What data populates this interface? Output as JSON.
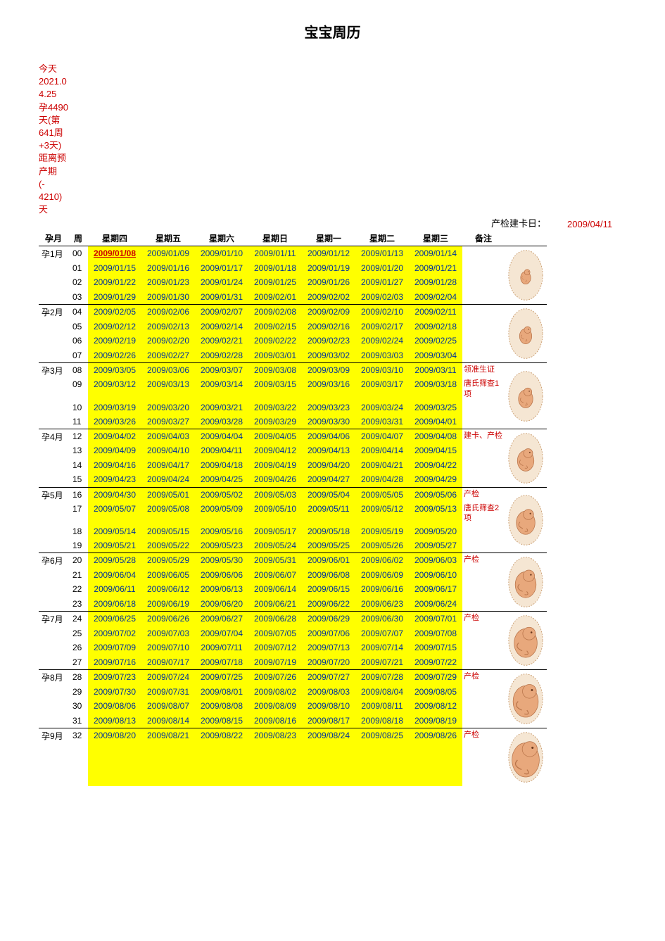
{
  "title": "宝宝周历",
  "top_info_lines": [
    "今天",
    "2021.0",
    "4.25",
    "孕4490",
    "天(第",
    "641周",
    "+3天)",
    "距离预",
    "产期",
    " (-",
    "4210)",
    "天"
  ],
  "exam_label": "产检建卡日：",
  "exam_date": "2009/04/11",
  "colors": {
    "highlight_bg": "#ffff00",
    "date_text": "#003399",
    "red_text": "#cc0000",
    "bg": "#ffffff"
  },
  "headers": [
    "孕月",
    "周",
    "星期四",
    "星期五",
    "星期六",
    "星期日",
    "星期一",
    "星期二",
    "星期三",
    "备注",
    ""
  ],
  "months": [
    {
      "label": "孕1月",
      "rows": [
        {
          "week": "00",
          "dates": [
            "2009/01/08",
            "2009/01/09",
            "2009/01/10",
            "2009/01/11",
            "2009/01/12",
            "2009/01/13",
            "2009/01/14"
          ],
          "note": "",
          "first_red": true
        },
        {
          "week": "01",
          "dates": [
            "2009/01/15",
            "2009/01/16",
            "2009/01/17",
            "2009/01/18",
            "2009/01/19",
            "2009/01/20",
            "2009/01/21"
          ],
          "note": ""
        },
        {
          "week": "02",
          "dates": [
            "2009/01/22",
            "2009/01/23",
            "2009/01/24",
            "2009/01/25",
            "2009/01/26",
            "2009/01/27",
            "2009/01/28"
          ],
          "note": ""
        },
        {
          "week": "03",
          "dates": [
            "2009/01/29",
            "2009/01/30",
            "2009/01/31",
            "2009/02/01",
            "2009/02/02",
            "2009/02/03",
            "2009/02/04"
          ],
          "note": ""
        }
      ]
    },
    {
      "label": "孕2月",
      "rows": [
        {
          "week": "04",
          "dates": [
            "2009/02/05",
            "2009/02/06",
            "2009/02/07",
            "2009/02/08",
            "2009/02/09",
            "2009/02/10",
            "2009/02/11"
          ],
          "note": ""
        },
        {
          "week": "05",
          "dates": [
            "2009/02/12",
            "2009/02/13",
            "2009/02/14",
            "2009/02/15",
            "2009/02/16",
            "2009/02/17",
            "2009/02/18"
          ],
          "note": ""
        },
        {
          "week": "06",
          "dates": [
            "2009/02/19",
            "2009/02/20",
            "2009/02/21",
            "2009/02/22",
            "2009/02/23",
            "2009/02/24",
            "2009/02/25"
          ],
          "note": ""
        },
        {
          "week": "07",
          "dates": [
            "2009/02/26",
            "2009/02/27",
            "2009/02/28",
            "2009/03/01",
            "2009/03/02",
            "2009/03/03",
            "2009/03/04"
          ],
          "note": ""
        }
      ]
    },
    {
      "label": "孕3月",
      "rows": [
        {
          "week": "08",
          "dates": [
            "2009/03/05",
            "2009/03/06",
            "2009/03/07",
            "2009/03/08",
            "2009/03/09",
            "2009/03/10",
            "2009/03/11"
          ],
          "note": "领准生证"
        },
        {
          "week": "09",
          "dates": [
            "2009/03/12",
            "2009/03/13",
            "2009/03/14",
            "2009/03/15",
            "2009/03/16",
            "2009/03/17",
            "2009/03/18"
          ],
          "note": "唐氏筛查1项"
        },
        {
          "week": "10",
          "dates": [
            "2009/03/19",
            "2009/03/20",
            "2009/03/21",
            "2009/03/22",
            "2009/03/23",
            "2009/03/24",
            "2009/03/25"
          ],
          "note": ""
        },
        {
          "week": "11",
          "dates": [
            "2009/03/26",
            "2009/03/27",
            "2009/03/28",
            "2009/03/29",
            "2009/03/30",
            "2009/03/31",
            "2009/04/01"
          ],
          "note": ""
        }
      ]
    },
    {
      "label": "孕4月",
      "rows": [
        {
          "week": "12",
          "dates": [
            "2009/04/02",
            "2009/04/03",
            "2009/04/04",
            "2009/04/05",
            "2009/04/06",
            "2009/04/07",
            "2009/04/08"
          ],
          "note": "建卡、产检"
        },
        {
          "week": "13",
          "dates": [
            "2009/04/09",
            "2009/04/10",
            "2009/04/11",
            "2009/04/12",
            "2009/04/13",
            "2009/04/14",
            "2009/04/15"
          ],
          "note": ""
        },
        {
          "week": "14",
          "dates": [
            "2009/04/16",
            "2009/04/17",
            "2009/04/18",
            "2009/04/19",
            "2009/04/20",
            "2009/04/21",
            "2009/04/22"
          ],
          "note": ""
        },
        {
          "week": "15",
          "dates": [
            "2009/04/23",
            "2009/04/24",
            "2009/04/25",
            "2009/04/26",
            "2009/04/27",
            "2009/04/28",
            "2009/04/29"
          ],
          "note": ""
        }
      ]
    },
    {
      "label": "孕5月",
      "rows": [
        {
          "week": "16",
          "dates": [
            "2009/04/30",
            "2009/05/01",
            "2009/05/02",
            "2009/05/03",
            "2009/05/04",
            "2009/05/05",
            "2009/05/06"
          ],
          "note": "产检"
        },
        {
          "week": "17",
          "dates": [
            "2009/05/07",
            "2009/05/08",
            "2009/05/09",
            "2009/05/10",
            "2009/05/11",
            "2009/05/12",
            "2009/05/13"
          ],
          "note": "唐氏筛查2项"
        },
        {
          "week": "18",
          "dates": [
            "2009/05/14",
            "2009/05/15",
            "2009/05/16",
            "2009/05/17",
            "2009/05/18",
            "2009/05/19",
            "2009/05/20"
          ],
          "note": ""
        },
        {
          "week": "19",
          "dates": [
            "2009/05/21",
            "2009/05/22",
            "2009/05/23",
            "2009/05/24",
            "2009/05/25",
            "2009/05/26",
            "2009/05/27"
          ],
          "note": ""
        }
      ]
    },
    {
      "label": "孕6月",
      "rows": [
        {
          "week": "20",
          "dates": [
            "2009/05/28",
            "2009/05/29",
            "2009/05/30",
            "2009/05/31",
            "2009/06/01",
            "2009/06/02",
            "2009/06/03"
          ],
          "note": "产检"
        },
        {
          "week": "21",
          "dates": [
            "2009/06/04",
            "2009/06/05",
            "2009/06/06",
            "2009/06/07",
            "2009/06/08",
            "2009/06/09",
            "2009/06/10"
          ],
          "note": ""
        },
        {
          "week": "22",
          "dates": [
            "2009/06/11",
            "2009/06/12",
            "2009/06/13",
            "2009/06/14",
            "2009/06/15",
            "2009/06/16",
            "2009/06/17"
          ],
          "note": ""
        },
        {
          "week": "23",
          "dates": [
            "2009/06/18",
            "2009/06/19",
            "2009/06/20",
            "2009/06/21",
            "2009/06/22",
            "2009/06/23",
            "2009/06/24"
          ],
          "note": ""
        }
      ]
    },
    {
      "label": "孕7月",
      "rows": [
        {
          "week": "24",
          "dates": [
            "2009/06/25",
            "2009/06/26",
            "2009/06/27",
            "2009/06/28",
            "2009/06/29",
            "2009/06/30",
            "2009/07/01"
          ],
          "note": "产检"
        },
        {
          "week": "25",
          "dates": [
            "2009/07/02",
            "2009/07/03",
            "2009/07/04",
            "2009/07/05",
            "2009/07/06",
            "2009/07/07",
            "2009/07/08"
          ],
          "note": ""
        },
        {
          "week": "26",
          "dates": [
            "2009/07/09",
            "2009/07/10",
            "2009/07/11",
            "2009/07/12",
            "2009/07/13",
            "2009/07/14",
            "2009/07/15"
          ],
          "note": ""
        },
        {
          "week": "27",
          "dates": [
            "2009/07/16",
            "2009/07/17",
            "2009/07/18",
            "2009/07/19",
            "2009/07/20",
            "2009/07/21",
            "2009/07/22"
          ],
          "note": ""
        }
      ]
    },
    {
      "label": "孕8月",
      "rows": [
        {
          "week": "28",
          "dates": [
            "2009/07/23",
            "2009/07/24",
            "2009/07/25",
            "2009/07/26",
            "2009/07/27",
            "2009/07/28",
            "2009/07/29"
          ],
          "note": "产检"
        },
        {
          "week": "29",
          "dates": [
            "2009/07/30",
            "2009/07/31",
            "2009/08/01",
            "2009/08/02",
            "2009/08/03",
            "2009/08/04",
            "2009/08/05"
          ],
          "note": ""
        },
        {
          "week": "30",
          "dates": [
            "2009/08/06",
            "2009/08/07",
            "2009/08/08",
            "2009/08/09",
            "2009/08/10",
            "2009/08/11",
            "2009/08/12"
          ],
          "note": ""
        },
        {
          "week": "31",
          "dates": [
            "2009/08/13",
            "2009/08/14",
            "2009/08/15",
            "2009/08/16",
            "2009/08/17",
            "2009/08/18",
            "2009/08/19"
          ],
          "note": ""
        }
      ]
    },
    {
      "label": "孕9月",
      "rows": [
        {
          "week": "32",
          "dates": [
            "2009/08/20",
            "2009/08/21",
            "2009/08/22",
            "2009/08/23",
            "2009/08/24",
            "2009/08/25",
            "2009/08/26"
          ],
          "note": "产检"
        }
      ]
    }
  ]
}
